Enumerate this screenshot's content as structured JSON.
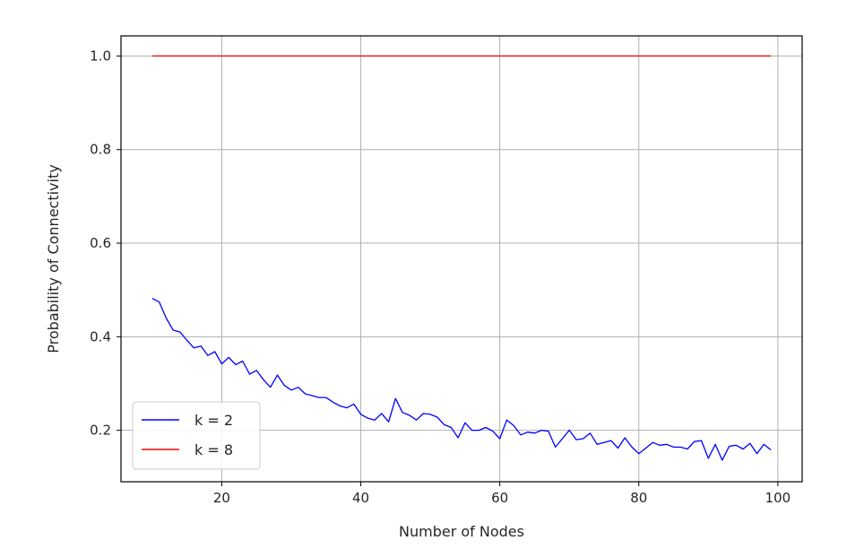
{
  "chart_data": {
    "type": "line",
    "title": "",
    "xlabel": "Number of Nodes",
    "ylabel": "Probability of Connectivity",
    "xlim": [
      5.5,
      103.5
    ],
    "ylim": [
      0.09,
      1.043
    ],
    "xticks": [
      20,
      40,
      60,
      80,
      100
    ],
    "yticks": [
      0.2,
      0.4,
      0.6,
      0.8,
      1.0
    ],
    "xtick_labels": [
      "20",
      "40",
      "60",
      "80",
      "100"
    ],
    "ytick_labels": [
      "0.2",
      "0.4",
      "0.6",
      "0.8",
      "1.0"
    ],
    "grid": true,
    "legend_position": "lower-left",
    "x": [
      10,
      11,
      12,
      13,
      14,
      15,
      16,
      17,
      18,
      19,
      20,
      21,
      22,
      23,
      24,
      25,
      26,
      27,
      28,
      29,
      30,
      31,
      32,
      33,
      34,
      35,
      36,
      37,
      38,
      39,
      40,
      41,
      42,
      43,
      44,
      45,
      46,
      47,
      48,
      49,
      50,
      51,
      52,
      53,
      54,
      55,
      56,
      57,
      58,
      59,
      60,
      61,
      62,
      63,
      64,
      65,
      66,
      67,
      68,
      69,
      70,
      71,
      72,
      73,
      74,
      75,
      76,
      77,
      78,
      79,
      80,
      81,
      82,
      83,
      84,
      85,
      86,
      87,
      88,
      89,
      90,
      91,
      92,
      93,
      94,
      95,
      96,
      97,
      98,
      99
    ],
    "series": [
      {
        "name": "k = 2",
        "color": "#0000ff",
        "values": [
          0.482,
          0.474,
          0.44,
          0.414,
          0.41,
          0.392,
          0.376,
          0.38,
          0.36,
          0.368,
          0.342,
          0.356,
          0.34,
          0.348,
          0.32,
          0.328,
          0.308,
          0.292,
          0.318,
          0.296,
          0.286,
          0.292,
          0.278,
          0.274,
          0.27,
          0.27,
          0.26,
          0.252,
          0.248,
          0.256,
          0.234,
          0.226,
          0.222,
          0.236,
          0.218,
          0.268,
          0.238,
          0.232,
          0.222,
          0.236,
          0.234,
          0.228,
          0.212,
          0.206,
          0.184,
          0.216,
          0.2,
          0.2,
          0.206,
          0.198,
          0.182,
          0.222,
          0.21,
          0.19,
          0.196,
          0.194,
          0.2,
          0.198,
          0.164,
          0.182,
          0.2,
          0.18,
          0.182,
          0.194,
          0.17,
          0.174,
          0.178,
          0.162,
          0.184,
          0.164,
          0.15,
          0.162,
          0.174,
          0.168,
          0.17,
          0.164,
          0.164,
          0.16,
          0.176,
          0.178,
          0.14,
          0.17,
          0.136,
          0.166,
          0.168,
          0.16,
          0.172,
          0.15,
          0.17,
          0.158
        ]
      },
      {
        "name": "k = 8",
        "color": "#ff0000",
        "values": [
          1,
          1,
          1,
          1,
          1,
          1,
          1,
          1,
          1,
          1,
          1,
          1,
          1,
          1,
          1,
          1,
          1,
          1,
          1,
          1,
          1,
          1,
          1,
          1,
          1,
          1,
          1,
          1,
          1,
          1,
          1,
          1,
          1,
          1,
          1,
          1,
          1,
          1,
          1,
          1,
          1,
          1,
          1,
          1,
          1,
          1,
          1,
          1,
          1,
          1,
          1,
          1,
          1,
          1,
          1,
          1,
          1,
          1,
          1,
          1,
          1,
          1,
          1,
          1,
          1,
          1,
          1,
          1,
          1,
          1,
          1,
          1,
          1,
          1,
          1,
          1,
          1,
          1,
          1,
          1,
          1,
          1,
          1,
          1,
          1,
          1,
          1,
          1,
          1,
          1
        ]
      }
    ]
  }
}
